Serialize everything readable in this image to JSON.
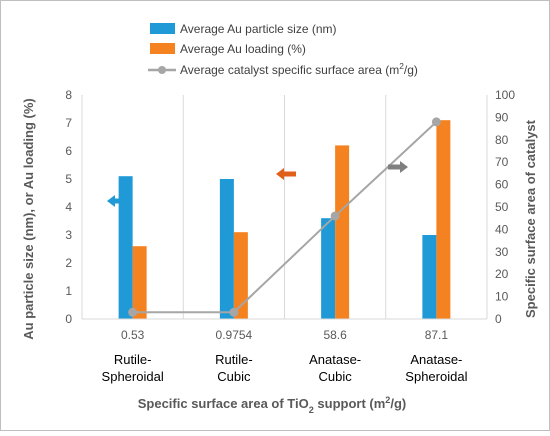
{
  "chart_data": {
    "type": "bar",
    "categories": [
      "0.53",
      "0.9754",
      "58.6",
      "87.1"
    ],
    "category_names": [
      [
        "Rutile-",
        "Spheroidal"
      ],
      [
        "Rutile-",
        "Cubic"
      ],
      [
        "Anatase-",
        "Cubic"
      ],
      [
        "Anatase-",
        "Spheroidal"
      ]
    ],
    "series": [
      {
        "name": "Average Au particle size (nm)",
        "type": "bar",
        "axis": "left",
        "color": "#1f9ad6",
        "values": [
          5.1,
          5.0,
          3.6,
          3.0
        ]
      },
      {
        "name": "Average Au loading (%)",
        "type": "bar",
        "axis": "left",
        "color": "#f58220",
        "values": [
          2.6,
          3.1,
          6.2,
          7.1
        ]
      },
      {
        "name": "Average catalyst specific surface area (m²/g)",
        "type": "line",
        "axis": "right",
        "color": "#a6a6a6",
        "values": [
          3,
          3,
          46,
          88
        ]
      }
    ],
    "xlabel": "Specific surface area of TiO₂ support (m²/g)",
    "ylabel_left": "Au particle size (nm), or Au loading (%)",
    "ylabel_right": "Specific surface area of catalyst",
    "ylim_left": [
      0,
      8
    ],
    "ylim_right": [
      0,
      100
    ],
    "yticks_left": [
      "0",
      "1",
      "2",
      "3",
      "4",
      "5",
      "6",
      "7",
      "8"
    ],
    "yticks_right": [
      "0",
      "10",
      "20",
      "30",
      "40",
      "50",
      "60",
      "70",
      "80",
      "90",
      "100"
    ],
    "grid": "vertical",
    "legend_position": "top",
    "annotations": [
      {
        "kind": "arrow",
        "direction": "left",
        "color": "#1f9ad6",
        "meaning": "left-axis"
      },
      {
        "kind": "arrow",
        "direction": "left",
        "color": "#e0601b",
        "meaning": "left-axis"
      },
      {
        "kind": "arrow",
        "direction": "right",
        "color": "#7f7f7f",
        "meaning": "right-axis"
      }
    ]
  }
}
